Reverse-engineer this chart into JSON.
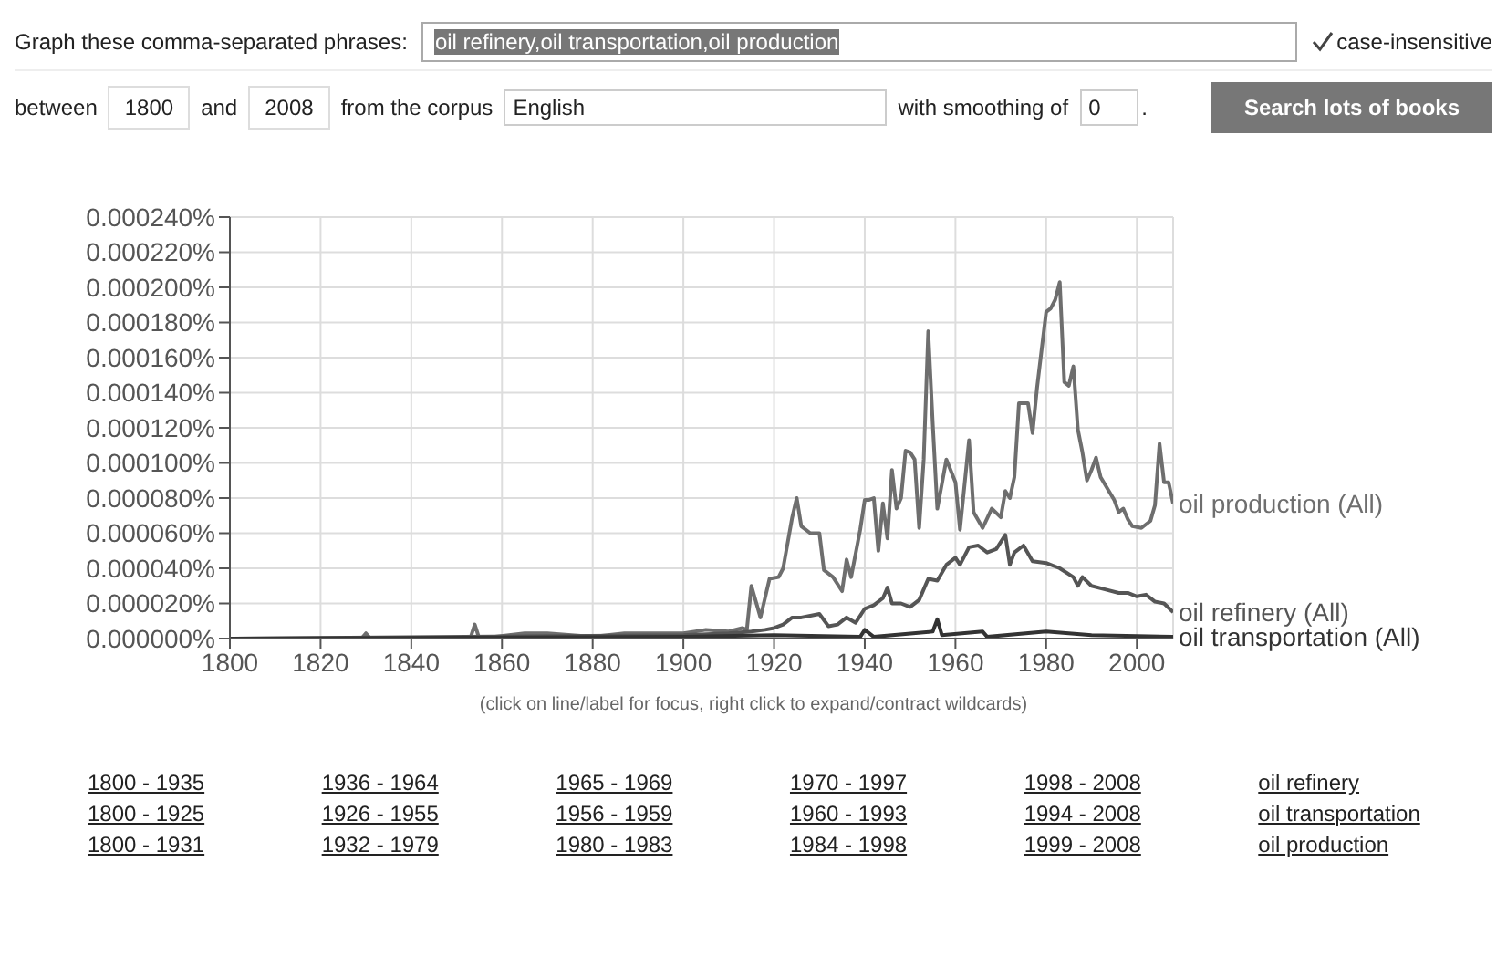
{
  "chart_data": {
    "type": "line",
    "annotations": [
      "Graph these comma-separated phrases:",
      "oil refinery,oil transportation,oil production",
      "case-insensitive",
      "between",
      "1800",
      "and",
      "2008",
      "from the corpus",
      "English",
      "with smoothing of",
      "0",
      ".",
      "Search lots of books",
      "(click on line/label for focus, right click to expand/contract wildcards)",
      "1800 - 1935",
      "1936 - 1964",
      "1965 - 1969",
      "1970 - 1997",
      "1998 - 2008",
      "oil refinery",
      "1800 - 1925",
      "1926 - 1955",
      "1956 - 1959",
      "1960 - 1993",
      "1994 - 2008",
      "oil transportation",
      "1800 - 1931",
      "1932 - 1979",
      "1980 - 1983",
      "1984 - 1998",
      "1999 - 2008",
      "oil production"
    ],
    "xlim": [
      1800,
      2008
    ],
    "xticks": [
      1800,
      1820,
      1840,
      1860,
      1880,
      1900,
      1920,
      1940,
      1960,
      1980,
      2000
    ],
    "ylim": [
      0,
      0.00024
    ],
    "yticks": [
      {
        "value": 0,
        "label": "0.000000%"
      },
      {
        "value": 2e-05,
        "label": "0.000020%"
      },
      {
        "value": 4e-05,
        "label": "0.000040%"
      },
      {
        "value": 6e-05,
        "label": "0.000060%"
      },
      {
        "value": 8e-05,
        "label": "0.000080%"
      },
      {
        "value": 0.0001,
        "label": "0.000100%"
      },
      {
        "value": 0.00012,
        "label": "0.000120%"
      },
      {
        "value": 0.00014,
        "label": "0.000140%"
      },
      {
        "value": 0.00016,
        "label": "0.000160%"
      },
      {
        "value": 0.00018,
        "label": "0.000180%"
      },
      {
        "value": 0.0002,
        "label": "0.000200%"
      },
      {
        "value": 0.00022,
        "label": "0.000220%"
      },
      {
        "value": 0.00024,
        "label": "0.000240%"
      }
    ],
    "grid": true,
    "marker": "none",
    "line_style": "solid",
    "series": [
      {
        "name": "oil production (All)",
        "color": "#6e6e6e",
        "x": [
          1800,
          1829,
          1830,
          1831,
          1853,
          1854,
          1855,
          1865,
          1870,
          1880,
          1887,
          1900,
          1905,
          1910,
          1913,
          1914,
          1915,
          1917,
          1919,
          1921,
          1922,
          1924,
          1925,
          1926,
          1928,
          1930,
          1931,
          1933,
          1935,
          1936,
          1937,
          1939,
          1940,
          1941,
          1942,
          1943,
          1944,
          1945,
          1946,
          1947,
          1948,
          1949,
          1950,
          1951,
          1952,
          1953,
          1954,
          1955,
          1956,
          1958,
          1960,
          1961,
          1963,
          1964,
          1966,
          1968,
          1970,
          1971,
          1972,
          1973,
          1974,
          1976,
          1977,
          1978,
          1980,
          1981,
          1982,
          1983,
          1984,
          1985,
          1986,
          1987,
          1988,
          1989,
          1990,
          1991,
          1992,
          1995,
          1996,
          1997,
          1998,
          1999,
          2001,
          2003,
          2004,
          2005,
          2006,
          2007,
          2008
        ],
        "values": [
          0,
          0,
          3e-06,
          0,
          0,
          8e-06,
          0,
          3e-06,
          3e-06,
          1e-06,
          3e-06,
          3e-06,
          5e-06,
          4e-06,
          6e-06,
          5e-06,
          3e-05,
          1.2e-05,
          3.4e-05,
          3.5e-05,
          4e-05,
          6.9e-05,
          8e-05,
          6.4e-05,
          6e-05,
          6e-05,
          3.9e-05,
          3.5e-05,
          2.7e-05,
          4.5e-05,
          3.5e-05,
          6.2e-05,
          7.9e-05,
          7.9e-05,
          8e-05,
          5e-05,
          7.7e-05,
          5.7e-05,
          9.6e-05,
          7.4e-05,
          8e-05,
          0.000107,
          0.000106,
          0.000102,
          6.3e-05,
          0.000102,
          0.000175,
          0.000122,
          7.4e-05,
          0.000102,
          8.9e-05,
          6.2e-05,
          0.000113,
          7.2e-05,
          6.3e-05,
          7.4e-05,
          6.9e-05,
          8.4e-05,
          8e-05,
          9.2e-05,
          0.000134,
          0.000134,
          0.000117,
          0.000143,
          0.000186,
          0.000188,
          0.000193,
          0.000203,
          0.000146,
          0.000144,
          0.000155,
          0.000119,
          0.000106,
          9e-05,
          9.6e-05,
          0.000103,
          9.2e-05,
          7.9e-05,
          7.2e-05,
          7.4e-05,
          6.8e-05,
          6.4e-05,
          6.3e-05,
          6.7e-05,
          7.6e-05,
          0.000111,
          8.9e-05,
          8.9e-05,
          7.7e-05
        ]
      },
      {
        "name": "oil refinery (All)",
        "color": "#555555",
        "x": [
          1800,
          1900,
          1910,
          1915,
          1918,
          1920,
          1922,
          1924,
          1926,
          1928,
          1930,
          1932,
          1934,
          1936,
          1938,
          1940,
          1942,
          1944,
          1945,
          1946,
          1948,
          1950,
          1952,
          1954,
          1956,
          1958,
          1960,
          1961,
          1963,
          1965,
          1967,
          1969,
          1971,
          1972,
          1973,
          1975,
          1977,
          1980,
          1983,
          1986,
          1987,
          1988,
          1990,
          1993,
          1996,
          1998,
          2000,
          2002,
          2004,
          2006,
          2008
        ],
        "values": [
          0,
          2e-06,
          3e-06,
          4e-06,
          5e-06,
          6e-06,
          8e-06,
          1.2e-05,
          1.2e-05,
          1.3e-05,
          1.4e-05,
          7e-06,
          8e-06,
          1.2e-05,
          9e-06,
          1.7e-05,
          1.9e-05,
          2.3e-05,
          2.9e-05,
          2e-05,
          2e-05,
          1.8e-05,
          2.2e-05,
          3.4e-05,
          3.3e-05,
          4.2e-05,
          4.6e-05,
          4.2e-05,
          5.2e-05,
          5.3e-05,
          4.9e-05,
          5.1e-05,
          5.9e-05,
          4.2e-05,
          4.9e-05,
          5.3e-05,
          4.4e-05,
          4.3e-05,
          4e-05,
          3.5e-05,
          3e-05,
          3.5e-05,
          3e-05,
          2.8e-05,
          2.6e-05,
          2.6e-05,
          2.4e-05,
          2.5e-05,
          2.1e-05,
          2e-05,
          1.5e-05
        ]
      },
      {
        "name": "oil transportation (All)",
        "color": "#333333",
        "x": [
          1800,
          1900,
          1920,
          1939,
          1940,
          1942,
          1955,
          1956,
          1957,
          1966,
          1967,
          1980,
          1990,
          2008
        ],
        "values": [
          0,
          1e-06,
          2e-06,
          1e-06,
          5e-06,
          1e-06,
          4e-06,
          1.1e-05,
          2e-06,
          4e-06,
          1e-06,
          4e-06,
          2e-06,
          1e-06
        ]
      }
    ]
  }
}
